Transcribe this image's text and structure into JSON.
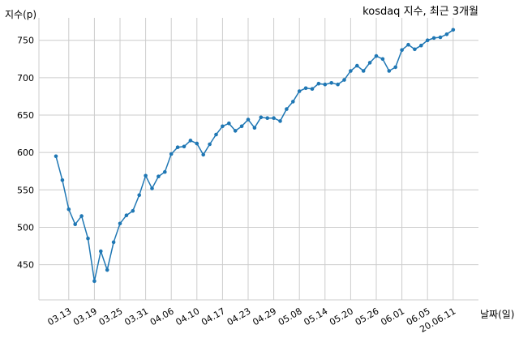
{
  "chart_data": {
    "type": "line",
    "title": "kosdaq 지수, 최근 3개월",
    "xlabel": "날짜(일)",
    "ylabel": "지수(p)",
    "ylim": [
      403,
      780
    ],
    "yticks": [
      450,
      500,
      550,
      600,
      650,
      700,
      750
    ],
    "grid": true,
    "line_color": "#1f77b4",
    "x_tick_labels": [
      "03.13",
      "03.19",
      "03.25",
      "03.31",
      "04.06",
      "04.10",
      "04.17",
      "04.23",
      "04.29",
      "05.08",
      "05.14",
      "05.20",
      "05.26",
      "06.01",
      "06.05",
      "20.06.11"
    ],
    "x_tick_indices": [
      2,
      6,
      10,
      14,
      18,
      22,
      26,
      30,
      34,
      38,
      42,
      46,
      50,
      54,
      58,
      62
    ],
    "series": [
      {
        "values": [
          595,
          563,
          524,
          504,
          515,
          485,
          428,
          468,
          443,
          480,
          505,
          516,
          522,
          543,
          569,
          552,
          568,
          574,
          598,
          607,
          608,
          616,
          612,
          597,
          611,
          624,
          635,
          639,
          629,
          635,
          644,
          633,
          647,
          646,
          646,
          642,
          658,
          668,
          682,
          686,
          685,
          692,
          691,
          693,
          691,
          697,
          709,
          716,
          709,
          720,
          729,
          725,
          709,
          714,
          737,
          744,
          738,
          743,
          750,
          753,
          754,
          758,
          764
        ]
      }
    ]
  }
}
